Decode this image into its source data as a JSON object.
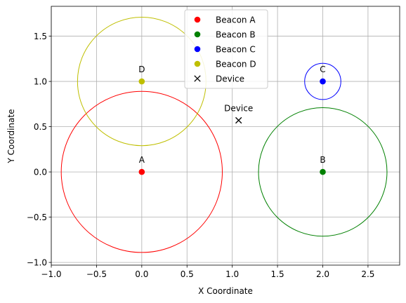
{
  "chart_data": {
    "type": "scatter",
    "title": "",
    "xlabel": "X Coordinate",
    "ylabel": "Y Coordinate",
    "xlim": [
      -1.0,
      2.85
    ],
    "ylim": [
      -1.03,
      1.83
    ],
    "grid": true,
    "legend_position": "top-center",
    "xticks": [
      -1.0,
      -0.5,
      0.0,
      0.5,
      1.0,
      1.5,
      2.0,
      2.5
    ],
    "xtick_labels": [
      "−1.0",
      "−0.5",
      "0.0",
      "0.5",
      "1.0",
      "1.5",
      "2.0",
      "2.5"
    ],
    "yticks": [
      -1.0,
      -0.5,
      0.0,
      0.5,
      1.0,
      1.5
    ],
    "ytick_labels": [
      "−1.0",
      "−0.5",
      "0.0",
      "0.5",
      "1.0",
      "1.5"
    ],
    "series": [
      {
        "name": "Beacon A",
        "label": "A",
        "x": 0.0,
        "y": 0.0,
        "radius": 0.89,
        "color": "#ff0000",
        "marker": "circle"
      },
      {
        "name": "Beacon B",
        "label": "B",
        "x": 2.0,
        "y": 0.0,
        "radius": 0.71,
        "color": "#008000",
        "marker": "circle"
      },
      {
        "name": "Beacon C",
        "label": "C",
        "x": 2.0,
        "y": 1.0,
        "radius": 0.2,
        "color": "#0000ff",
        "marker": "circle"
      },
      {
        "name": "Beacon D",
        "label": "D",
        "x": 0.0,
        "y": 1.0,
        "radius": 0.71,
        "color": "#bfbf00",
        "marker": "circle"
      },
      {
        "name": "Device",
        "label": "Device",
        "x": 1.07,
        "y": 0.57,
        "color": "#000000",
        "marker": "x"
      }
    ]
  }
}
